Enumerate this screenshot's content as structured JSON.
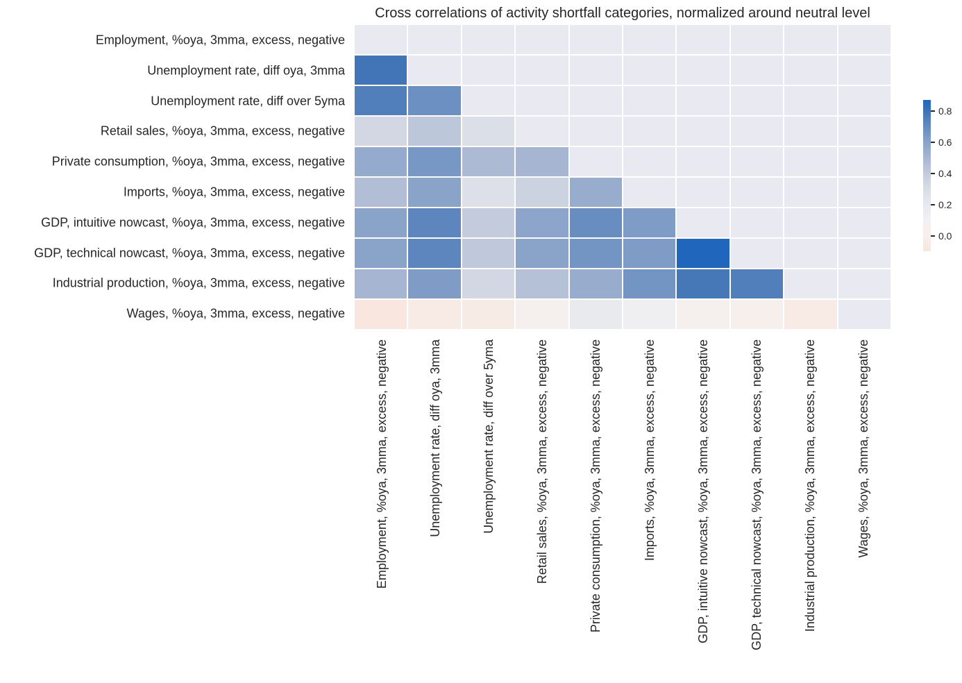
{
  "chart_data": {
    "type": "heatmap",
    "title": "Cross correlations of activity shortfall categories, normalized around neutral level",
    "labels": [
      "Employment, %oya, 3mma, excess, negative",
      "Unemployment rate, diff oya, 3mma",
      "Unemployment rate, diff over 5yma",
      "Retail sales, %oya, 3mma, excess, negative",
      "Private consumption, %oya, 3mma, excess, negative",
      "Imports, %oya, 3mma, excess, negative",
      "GDP, intuitive nowcast, %oya, 3mma, excess, negative",
      "GDP, technical nowcast, %oya, 3mma, excess, negative",
      "Industrial production, %oya, 3mma, excess, negative",
      "Wages, %oya, 3mma, excess, negative"
    ],
    "matrix": [
      [
        null,
        null,
        null,
        null,
        null,
        null,
        null,
        null,
        null,
        null
      ],
      [
        0.79,
        null,
        null,
        null,
        null,
        null,
        null,
        null,
        null,
        null
      ],
      [
        0.75,
        0.68,
        null,
        null,
        null,
        null,
        null,
        null,
        null,
        null
      ],
      [
        0.33,
        0.42,
        0.28,
        null,
        null,
        null,
        null,
        null,
        null,
        null
      ],
      [
        0.56,
        0.65,
        0.48,
        0.5,
        null,
        null,
        null,
        null,
        null,
        null
      ],
      [
        0.46,
        0.6,
        0.27,
        0.36,
        0.55,
        null,
        null,
        null,
        null,
        null
      ],
      [
        0.6,
        0.72,
        0.4,
        0.59,
        0.69,
        0.63,
        null,
        null,
        null,
        null
      ],
      [
        0.6,
        0.72,
        0.41,
        0.6,
        0.66,
        0.63,
        0.87,
        null,
        null,
        null
      ],
      [
        0.5,
        0.63,
        0.33,
        0.45,
        0.55,
        0.66,
        0.78,
        0.75,
        null,
        null
      ],
      [
        -0.1,
        -0.05,
        -0.04,
        0.03,
        0.19,
        0.12,
        0.03,
        0.02,
        -0.05,
        null
      ]
    ],
    "color_scale": {
      "vmin": -0.1,
      "vmax": 0.87,
      "tick_labels": [
        "0.8",
        "0.6",
        "0.4",
        "0.2",
        "0.0"
      ],
      "tick_values": [
        0.8,
        0.6,
        0.4,
        0.2,
        0.0
      ],
      "stops": [
        {
          "v": -0.1,
          "c": "#f8e6df"
        },
        {
          "v": 0.0,
          "c": "#f7efeb"
        },
        {
          "v": 0.1,
          "c": "#f1f0f2"
        },
        {
          "v": 0.2,
          "c": "#e8e9ee"
        },
        {
          "v": 0.3,
          "c": "#d8dce6"
        },
        {
          "v": 0.4,
          "c": "#c3cbdc"
        },
        {
          "v": 0.5,
          "c": "#a6b6d2"
        },
        {
          "v": 0.6,
          "c": "#8aa3c9"
        },
        {
          "v": 0.7,
          "c": "#648bbf"
        },
        {
          "v": 0.8,
          "c": "#3e73b6"
        },
        {
          "v": 0.87,
          "c": "#2166bd"
        }
      ]
    },
    "colors": {
      "masked_cell": "#e9e9f1",
      "grid_line": "#ffffff",
      "background": "#ffffff",
      "text": "#262626"
    },
    "legend_position": "right",
    "grid": true
  }
}
